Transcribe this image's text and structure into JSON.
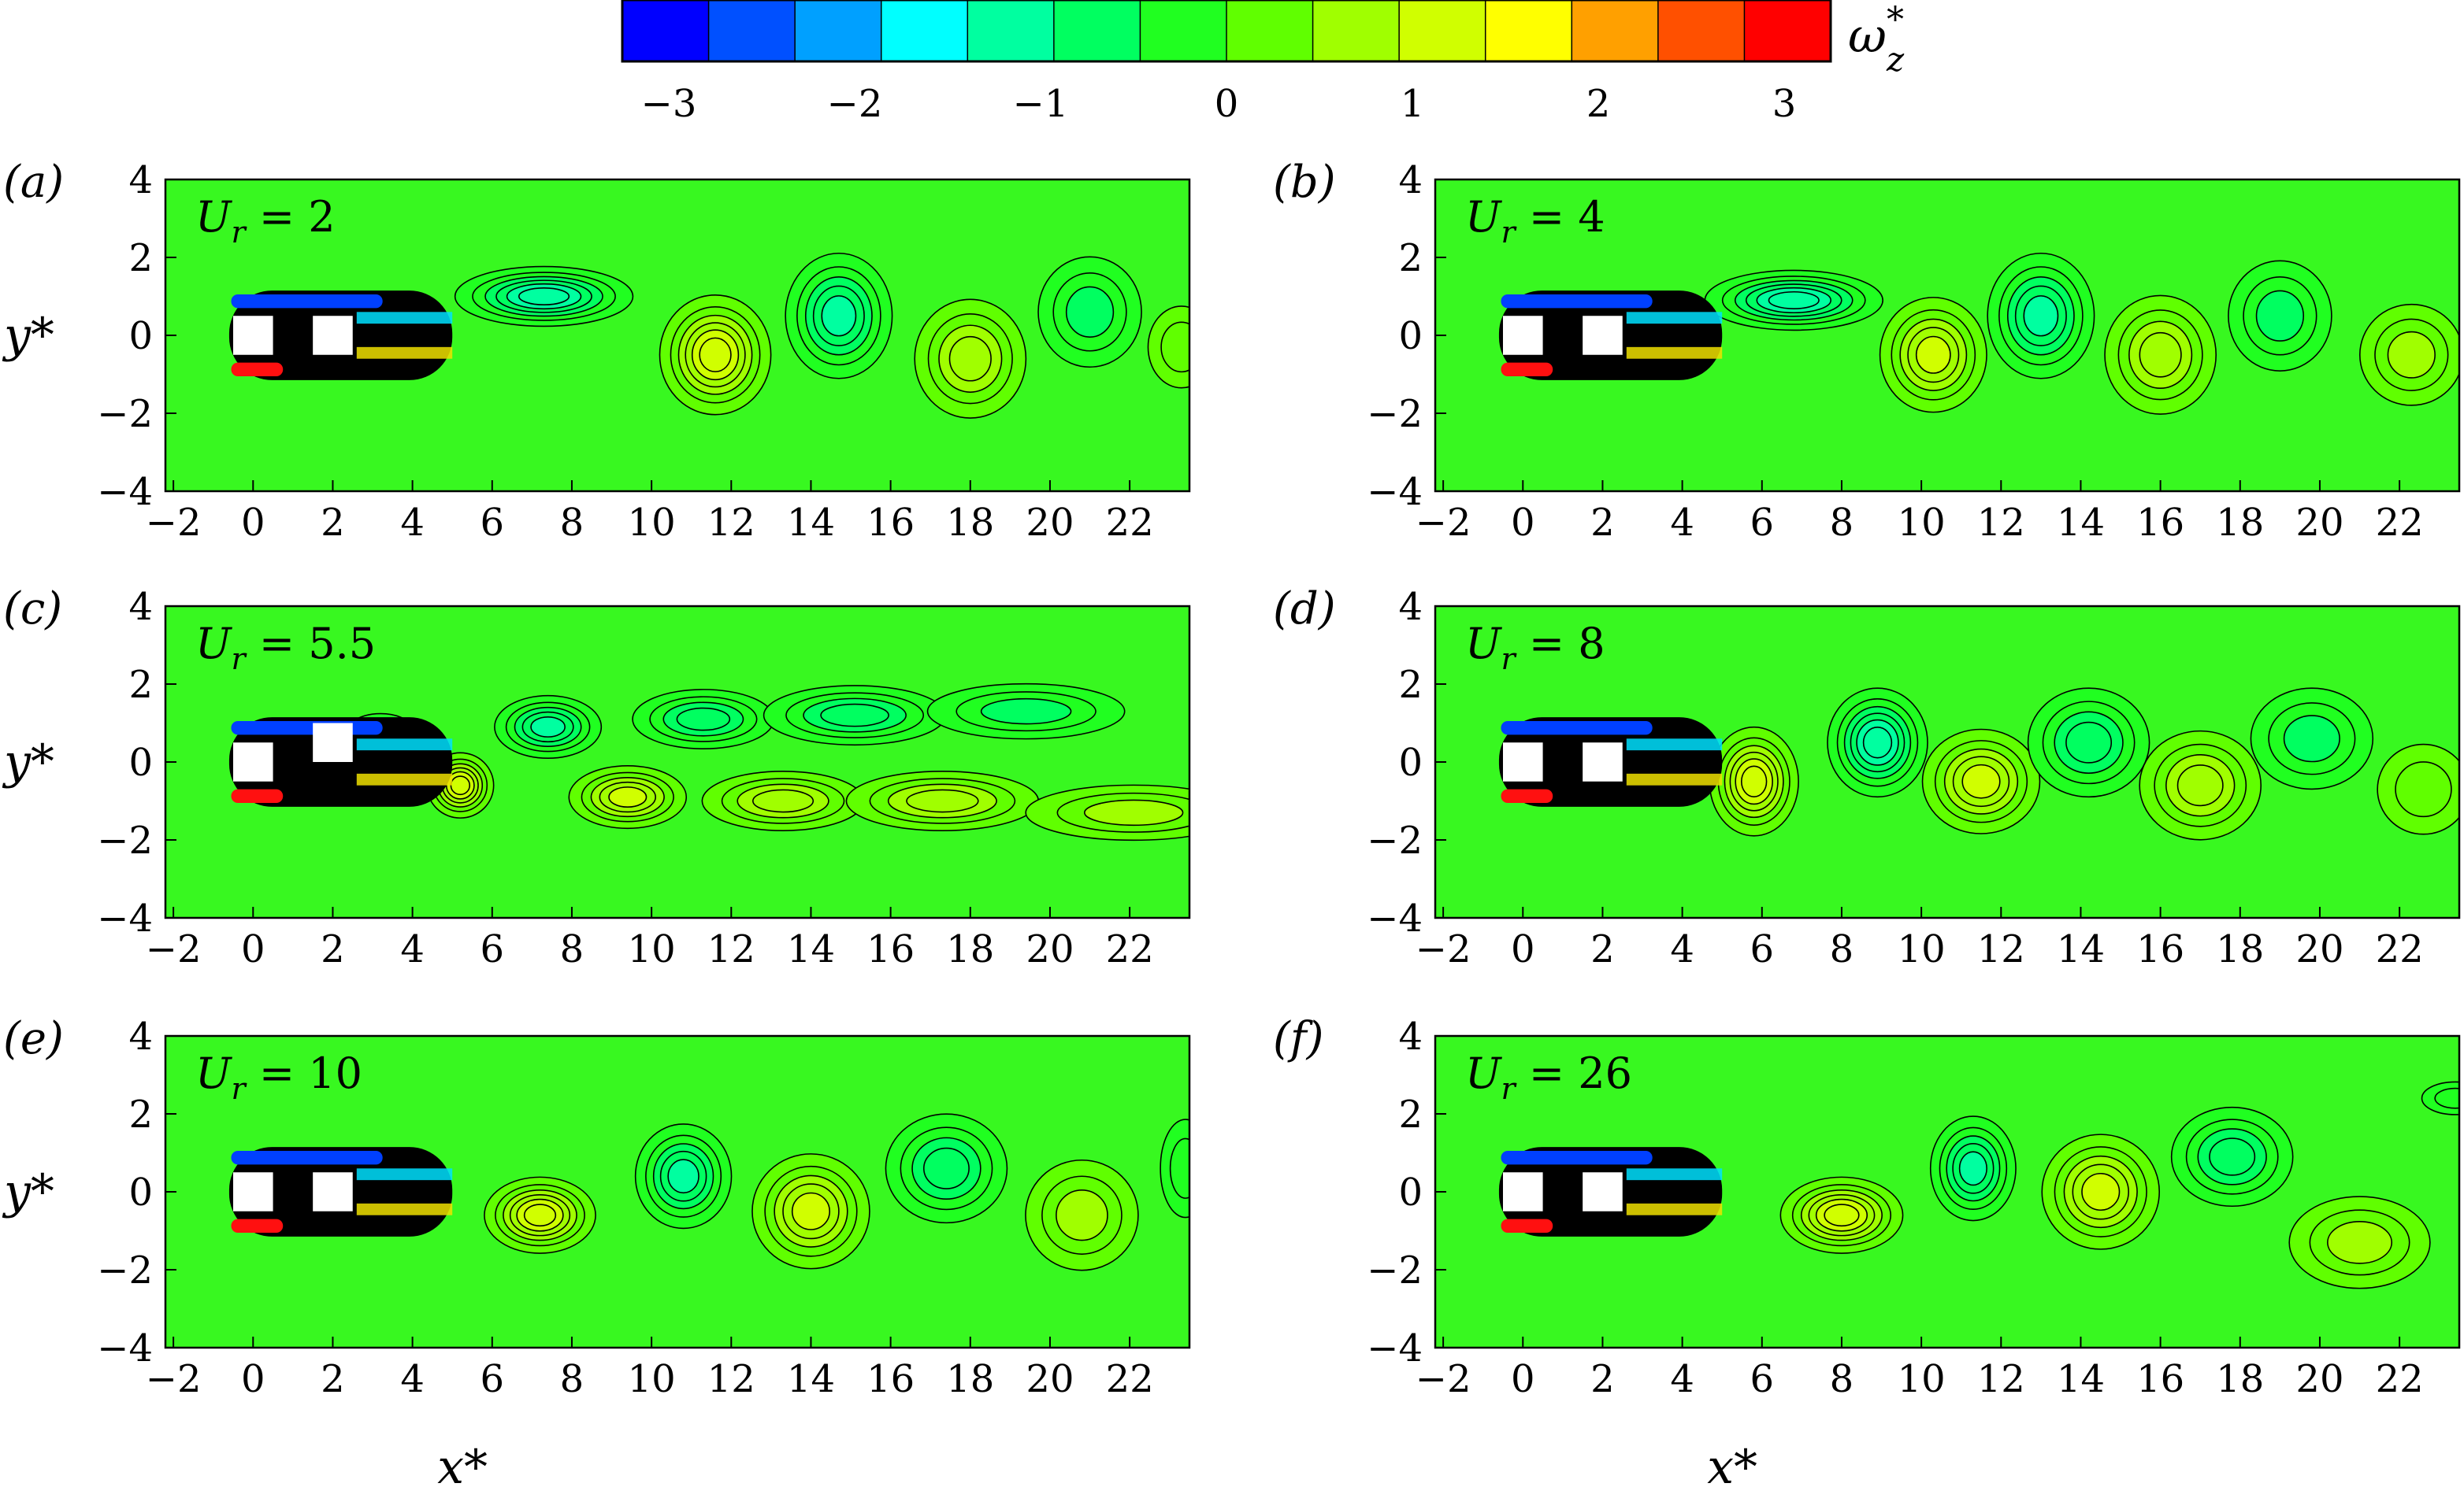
{
  "colorbar": {
    "label": "ω*z",
    "label_main": "ω",
    "label_sup": "*",
    "label_sub": "z",
    "ticks": [
      "−3",
      "−2",
      "−1",
      "0",
      "1",
      "2",
      "3"
    ],
    "tick_values": [
      -3,
      -2,
      -1,
      0,
      1,
      2,
      3
    ],
    "range": [
      -3.25,
      3.25
    ],
    "colors": [
      "#0000ff",
      "#0050ff",
      "#00a0ff",
      "#00ffff",
      "#00ffa0",
      "#00ff60",
      "#20ff20",
      "#60ff00",
      "#a0ff00",
      "#d0ff00",
      "#ffff00",
      "#ffa000",
      "#ff5000",
      "#ff0000"
    ]
  },
  "chart_data": [
    {
      "type": "heatmap",
      "panel": "(a)",
      "annotation": "U_r = 2",
      "annotation_main": "U",
      "annotation_sub": "r",
      "annotation_rest": " = 2",
      "xlabel": "",
      "ylabel": "y*",
      "xlim": [
        -2.2,
        23.5
      ],
      "ylim": [
        -4,
        4
      ],
      "xticks": [
        "−2",
        "0",
        "2",
        "4",
        "6",
        "8",
        "10",
        "12",
        "14",
        "16",
        "18",
        "20",
        "22"
      ],
      "yticks": [
        "−4",
        "−2",
        "0",
        "2",
        "4"
      ],
      "cylinders": [
        [
          0,
          0
        ],
        [
          2,
          0
        ]
      ],
      "vortices": [
        [
          7.3,
          1.0,
          -1.5,
          1.6,
          0.55
        ],
        [
          11.6,
          -0.5,
          1.4,
          1.0,
          1.1
        ],
        [
          14.7,
          0.5,
          -1.2,
          1.0,
          1.2
        ],
        [
          18.0,
          -0.6,
          0.9,
          1.1,
          1.2
        ],
        [
          21.0,
          0.6,
          -0.8,
          1.1,
          1.2
        ],
        [
          23.3,
          -0.3,
          0.5,
          0.8,
          1.0
        ]
      ]
    },
    {
      "type": "heatmap",
      "panel": "(b)",
      "annotation": "U_r = 4",
      "annotation_main": "U",
      "annotation_sub": "r",
      "annotation_rest": " = 4",
      "xlabel": "",
      "ylabel": "",
      "xlim": [
        -2.2,
        23.5
      ],
      "ylim": [
        -4,
        4
      ],
      "xticks": [
        "−2",
        "0",
        "2",
        "4",
        "6",
        "8",
        "10",
        "12",
        "14",
        "16",
        "18",
        "20",
        "22"
      ],
      "yticks": [
        "−4",
        "−2",
        "0",
        "2",
        "4"
      ],
      "cylinders": [
        [
          0,
          0
        ],
        [
          2,
          0
        ]
      ],
      "vortices": [
        [
          6.8,
          0.9,
          -1.5,
          1.6,
          0.55
        ],
        [
          10.3,
          -0.5,
          1.3,
          1.0,
          1.1
        ],
        [
          13.0,
          0.5,
          -1.2,
          1.0,
          1.2
        ],
        [
          16.0,
          -0.5,
          0.9,
          1.1,
          1.2
        ],
        [
          19.0,
          0.5,
          -0.8,
          1.1,
          1.2
        ],
        [
          22.3,
          -0.5,
          0.7,
          1.1,
          1.1
        ]
      ]
    },
    {
      "type": "heatmap",
      "panel": "(c)",
      "annotation": "U_r = 5.5",
      "annotation_main": "U",
      "annotation_sub": "r",
      "annotation_rest": " = 5.5",
      "xlabel": "",
      "ylabel": "y*",
      "xlim": [
        -2.2,
        23.5
      ],
      "ylim": [
        -4,
        4
      ],
      "xticks": [
        "−2",
        "0",
        "2",
        "4",
        "6",
        "8",
        "10",
        "12",
        "14",
        "16",
        "18",
        "20",
        "22"
      ],
      "yticks": [
        "−4",
        "−2",
        "0",
        "2",
        "4"
      ],
      "cylinders": [
        [
          0,
          0
        ],
        [
          2,
          0.5
        ]
      ],
      "vortices": [
        [
          3.2,
          0.5,
          -2.0,
          0.7,
          0.5
        ],
        [
          5.2,
          -0.6,
          1.6,
          0.6,
          0.6
        ],
        [
          7.4,
          0.9,
          -1.3,
          1.0,
          0.6
        ],
        [
          9.4,
          -0.9,
          1.2,
          1.1,
          0.6
        ],
        [
          11.3,
          1.1,
          -1.1,
          1.4,
          0.6
        ],
        [
          13.3,
          -1.0,
          1.1,
          1.6,
          0.6
        ],
        [
          15.1,
          1.2,
          -0.9,
          1.8,
          0.6
        ],
        [
          17.3,
          -1.0,
          0.9,
          1.9,
          0.6
        ],
        [
          19.4,
          1.3,
          -0.8,
          2.1,
          0.6
        ],
        [
          22.1,
          -1.3,
          0.8,
          2.3,
          0.6
        ]
      ]
    },
    {
      "type": "heatmap",
      "panel": "(d)",
      "annotation": "U_r = 8",
      "annotation_main": "U",
      "annotation_sub": "r",
      "annotation_rest": " = 8",
      "xlabel": "",
      "ylabel": "",
      "xlim": [
        -2.2,
        23.5
      ],
      "ylim": [
        -4,
        4
      ],
      "xticks": [
        "−2",
        "0",
        "2",
        "4",
        "6",
        "8",
        "10",
        "12",
        "14",
        "16",
        "18",
        "20",
        "22"
      ],
      "yticks": [
        "−4",
        "−2",
        "0",
        "2",
        "4"
      ],
      "cylinders": [
        [
          0,
          0
        ],
        [
          2,
          0
        ]
      ],
      "vortices": [
        [
          5.8,
          -0.5,
          1.6,
          0.8,
          1.0
        ],
        [
          8.9,
          0.5,
          -1.5,
          0.9,
          1.0
        ],
        [
          11.5,
          -0.5,
          1.3,
          1.1,
          1.0
        ],
        [
          14.2,
          0.5,
          -1.1,
          1.2,
          1.1
        ],
        [
          17.0,
          -0.6,
          0.9,
          1.2,
          1.1
        ],
        [
          19.8,
          0.6,
          -0.8,
          1.3,
          1.1
        ],
        [
          22.6,
          -0.7,
          0.6,
          1.1,
          1.1
        ]
      ]
    },
    {
      "type": "heatmap",
      "panel": "(e)",
      "annotation": "U_r = 10",
      "annotation_main": "U",
      "annotation_sub": "r",
      "annotation_rest": " = 10",
      "xlabel": "x*",
      "ylabel": "y*",
      "xlim": [
        -2.2,
        23.5
      ],
      "ylim": [
        -4,
        4
      ],
      "xticks": [
        "−2",
        "0",
        "2",
        "4",
        "6",
        "8",
        "10",
        "12",
        "14",
        "16",
        "18",
        "20",
        "22"
      ],
      "yticks": [
        "−4",
        "−2",
        "0",
        "2",
        "4"
      ],
      "cylinders": [
        [
          0,
          0
        ],
        [
          2,
          0
        ]
      ],
      "vortices": [
        [
          7.2,
          -0.6,
          1.5,
          1.0,
          0.7
        ],
        [
          10.8,
          0.4,
          -1.3,
          0.9,
          1.0
        ],
        [
          14.0,
          -0.5,
          1.2,
          1.1,
          1.1
        ],
        [
          17.4,
          0.6,
          -0.9,
          1.2,
          1.1
        ],
        [
          20.8,
          -0.6,
          0.8,
          1.2,
          1.2
        ],
        [
          23.4,
          0.6,
          -0.6,
          0.6,
          1.2
        ]
      ]
    },
    {
      "type": "heatmap",
      "panel": "(f)",
      "annotation": "U_r = 26",
      "annotation_main": "U",
      "annotation_sub": "r",
      "annotation_rest": " = 26",
      "xlabel": "x*",
      "ylabel": "",
      "xlim": [
        -2.2,
        23.5
      ],
      "ylim": [
        -4,
        4
      ],
      "xticks": [
        "−2",
        "0",
        "2",
        "4",
        "6",
        "8",
        "10",
        "12",
        "14",
        "16",
        "18",
        "20",
        "22"
      ],
      "yticks": [
        "−4",
        "−2",
        "0",
        "2",
        "4"
      ],
      "cylinders": [
        [
          0,
          0
        ],
        [
          2,
          0
        ]
      ],
      "vortices": [
        [
          8.0,
          -0.6,
          1.6,
          1.1,
          0.7
        ],
        [
          11.3,
          0.6,
          -1.3,
          0.8,
          1.0
        ],
        [
          14.5,
          0.0,
          1.3,
          1.1,
          1.1
        ],
        [
          17.8,
          0.9,
          -0.9,
          1.2,
          1.0
        ],
        [
          21.0,
          -1.3,
          0.8,
          1.5,
          1.0
        ],
        [
          23.4,
          2.4,
          -0.4,
          0.8,
          0.4
        ]
      ]
    }
  ]
}
